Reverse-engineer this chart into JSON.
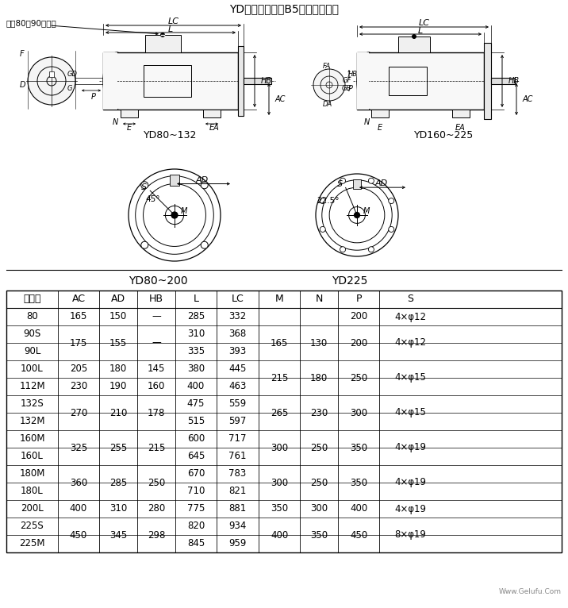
{
  "title": "YD系列電動機（B5）外形尺寸圖",
  "label_yd80_132": "YD80~132",
  "label_yd160_225": "YD160~225",
  "label_yd80_200": "YD80~200",
  "label_yd225": "YD225",
  "label_jizuo": "机座80、90无吊攀",
  "table_columns": [
    "中心高",
    "AC",
    "AD",
    "HB",
    "L",
    "LC",
    "M",
    "N",
    "P",
    "S"
  ],
  "table_data": [
    [
      "80",
      "165",
      "150",
      "—",
      "285",
      "332",
      "",
      "",
      "200",
      "4×φ12"
    ],
    [
      "90S",
      "175",
      "155",
      "—",
      "310",
      "368",
      "165",
      "130",
      "200",
      "4×φ12"
    ],
    [
      "90L",
      "",
      "",
      "",
      "335",
      "393",
      "",
      "",
      "",
      ""
    ],
    [
      "100L",
      "205",
      "180",
      "145",
      "380",
      "445",
      "215",
      "180",
      "250",
      "4×φ15"
    ],
    [
      "112M",
      "230",
      "190",
      "160",
      "400",
      "463",
      "",
      "",
      "",
      ""
    ],
    [
      "132S",
      "270",
      "210",
      "178",
      "475",
      "559",
      "265",
      "230",
      "300",
      "4×φ15"
    ],
    [
      "132M",
      "",
      "",
      "",
      "515",
      "597",
      "",
      "",
      "",
      ""
    ],
    [
      "160M",
      "325",
      "255",
      "215",
      "600",
      "717",
      "300",
      "250",
      "350",
      "4×φ19"
    ],
    [
      "160L",
      "",
      "",
      "",
      "645",
      "761",
      "",
      "",
      "",
      ""
    ],
    [
      "180M",
      "360",
      "285",
      "250",
      "670",
      "783",
      "300",
      "250",
      "350",
      "4×φ19"
    ],
    [
      "180L",
      "",
      "",
      "",
      "710",
      "821",
      "",
      "",
      "",
      ""
    ],
    [
      "200L",
      "400",
      "310",
      "280",
      "775",
      "881",
      "350",
      "300",
      "400",
      "4×φ19"
    ],
    [
      "225S",
      "450",
      "345",
      "298",
      "820",
      "934",
      "400",
      "350",
      "450",
      "8×φ19"
    ],
    [
      "225M",
      "",
      "",
      "",
      "845",
      "959",
      "",
      "",
      "",
      ""
    ]
  ],
  "bg_color": "#ffffff",
  "table_font_size": 8.5,
  "fig_width": 7.16,
  "fig_height": 7.66
}
